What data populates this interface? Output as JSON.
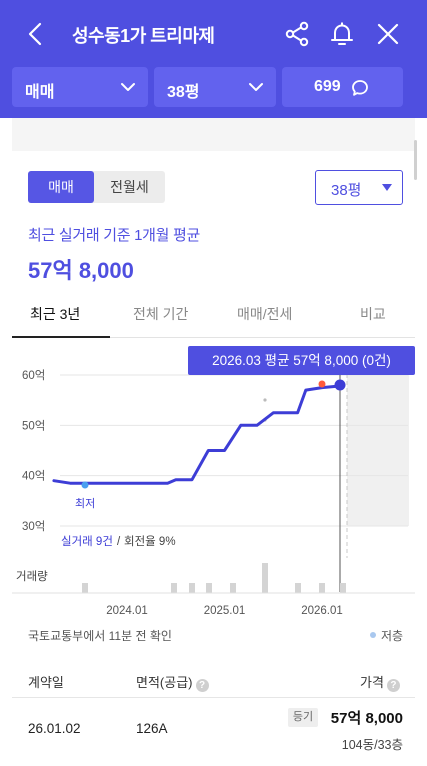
{
  "header": {
    "title": "성수동1가 트리마제",
    "filters": {
      "trade_type": "매매",
      "size": "38평",
      "chat_count": "699"
    },
    "bg_color": "#4f4fe0"
  },
  "segment": {
    "options": [
      "매매",
      "전월세"
    ],
    "selected": "매매"
  },
  "size_select": {
    "value": "38평"
  },
  "summary": {
    "label": "최근 실거래 기준 1개월 평균",
    "price": "57억 8,000"
  },
  "tabs": [
    {
      "label": "최근 3년",
      "active": true
    },
    {
      "label": "전체 기간",
      "active": false
    },
    {
      "label": "매매/전세",
      "active": false
    },
    {
      "label": "비교",
      "active": false
    }
  ],
  "chart": {
    "tooltip": "2026.03 평균 57억 8,000 (0건)",
    "low_marker": "최저",
    "stats": {
      "trades": "실거래 9건",
      "sep": "/",
      "turnover": "회전율 9%"
    },
    "volume_label": "거래량",
    "footer_note": "국토교통부에서 11분 전 확인",
    "legend": "저층"
  },
  "chart_data": {
    "type": "line",
    "yticks": [
      "60억",
      "50억",
      "40억",
      "30억"
    ],
    "ylim": [
      30,
      60
    ],
    "xticks": [
      "2024.01",
      "2025.01",
      "2026.01"
    ],
    "series": [
      {
        "values": [
          [
            "2023.04",
            39.0
          ],
          [
            "2023.06",
            38.5
          ],
          [
            "2023.09",
            38.5
          ],
          [
            "2023.12",
            38.5
          ],
          [
            "2024.03",
            38.5
          ],
          [
            "2024.06",
            38.5
          ],
          [
            "2024.07",
            39.2
          ],
          [
            "2024.09",
            39.2
          ],
          [
            "2024.11",
            45.0
          ],
          [
            "2025.01",
            45.0
          ],
          [
            "2025.03",
            50.0
          ],
          [
            "2025.05",
            50.0
          ],
          [
            "2025.07",
            52.5
          ],
          [
            "2025.10",
            52.5
          ],
          [
            "2025.11",
            57.0
          ],
          [
            "2026.01",
            57.5
          ],
          [
            "2026.03",
            57.8
          ]
        ]
      }
    ],
    "volume_bars": 9
  },
  "table": {
    "headers": {
      "date": "계약일",
      "area": "면적(공급)",
      "price": "가격"
    },
    "rows": [
      {
        "date": "26.01.02",
        "area": "126A",
        "badge": "등기",
        "price": "57억 8,000",
        "floor": "104동/33층"
      }
    ]
  }
}
